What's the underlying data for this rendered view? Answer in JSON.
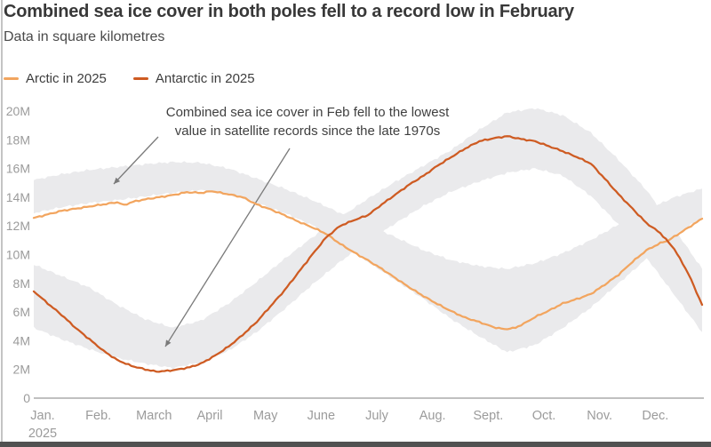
{
  "header": {
    "title": "Combined sea ice cover in both poles fell to a record low in February",
    "subtitle": "Data in square kilometres"
  },
  "legend": [
    {
      "label": "Arctic in 2025",
      "color": "#F2A55F"
    },
    {
      "label": "Antarctic in 2025",
      "color": "#CE5B22"
    }
  ],
  "annotation": {
    "line1": "Combined sea ice cover in Feb fell to the lowest",
    "line2": "value in satellite records since the late 1970s"
  },
  "chart_data": {
    "type": "line",
    "title": "Combined sea ice cover in both poles fell to a record low in February",
    "subtitle": "Data in square kilometres",
    "x_axis": {
      "labels": [
        "Jan.",
        "Feb.",
        "March",
        "April",
        "May",
        "June",
        "July",
        "Aug.",
        "Sept.",
        "Oct.",
        "Nov.",
        "Dec."
      ],
      "year_label": "2025",
      "range_months": [
        0,
        12
      ]
    },
    "y_axis": {
      "tick_values": [
        0,
        2,
        4,
        6,
        8,
        10,
        12,
        14,
        16,
        18,
        20
      ],
      "tick_suffix": "M",
      "min": 0,
      "max": 20,
      "grid": false
    },
    "colors": {
      "arctic": "#F2A55F",
      "antarctic": "#CE5B22",
      "band": "#EAEAEC",
      "axis": "#ababab",
      "tick_text": "#9b9b9b",
      "arrow": "#7a7a7a"
    },
    "series": [
      {
        "name": "Arctic in 2025",
        "color": "#F2A55F",
        "unit": "million sq km",
        "points": [
          [
            0,
            12.55
          ],
          [
            0.25,
            12.8
          ],
          [
            0.5,
            13.05
          ],
          [
            0.75,
            13.2
          ],
          [
            1,
            13.35
          ],
          [
            1.25,
            13.5
          ],
          [
            1.5,
            13.65
          ],
          [
            1.62,
            13.45
          ],
          [
            1.78,
            13.68
          ],
          [
            2,
            13.85
          ],
          [
            2.25,
            14.0
          ],
          [
            2.5,
            14.15
          ],
          [
            2.75,
            14.35
          ],
          [
            3,
            14.3
          ],
          [
            3.2,
            14.42
          ],
          [
            3.5,
            14.2
          ],
          [
            3.75,
            14.0
          ],
          [
            4,
            13.5
          ],
          [
            4.25,
            13.15
          ],
          [
            4.5,
            12.75
          ],
          [
            4.75,
            12.3
          ],
          [
            5,
            11.9
          ],
          [
            5.25,
            11.45
          ],
          [
            5.5,
            10.75
          ],
          [
            5.75,
            10.15
          ],
          [
            6,
            9.6
          ],
          [
            6.25,
            9.0
          ],
          [
            6.5,
            8.35
          ],
          [
            6.75,
            7.7
          ],
          [
            7,
            7.1
          ],
          [
            7.25,
            6.55
          ],
          [
            7.5,
            6.05
          ],
          [
            7.75,
            5.6
          ],
          [
            8,
            5.3
          ],
          [
            8.25,
            4.95
          ],
          [
            8.45,
            4.8
          ],
          [
            8.65,
            4.9
          ],
          [
            8.85,
            5.3
          ],
          [
            9,
            5.65
          ],
          [
            9.25,
            6.1
          ],
          [
            9.5,
            6.6
          ],
          [
            9.75,
            6.9
          ],
          [
            10,
            7.25
          ],
          [
            10.25,
            7.9
          ],
          [
            10.5,
            8.6
          ],
          [
            10.75,
            9.5
          ],
          [
            11,
            10.3
          ],
          [
            11.25,
            10.8
          ],
          [
            11.4,
            11.0
          ],
          [
            11.6,
            11.5
          ],
          [
            11.8,
            12.0
          ],
          [
            12,
            12.5
          ]
        ]
      },
      {
        "name": "Antarctic in 2025",
        "color": "#CE5B22",
        "unit": "million sq km",
        "points": [
          [
            0,
            7.45
          ],
          [
            0.25,
            6.6
          ],
          [
            0.5,
            5.8
          ],
          [
            0.75,
            4.9
          ],
          [
            1,
            4.1
          ],
          [
            1.25,
            3.3
          ],
          [
            1.5,
            2.65
          ],
          [
            1.75,
            2.25
          ],
          [
            2,
            2.0
          ],
          [
            2.2,
            1.85
          ],
          [
            2.4,
            1.9
          ],
          [
            2.6,
            2.0
          ],
          [
            2.8,
            2.15
          ],
          [
            3,
            2.4
          ],
          [
            3.25,
            2.95
          ],
          [
            3.5,
            3.6
          ],
          [
            3.75,
            4.4
          ],
          [
            4,
            5.3
          ],
          [
            4.25,
            6.4
          ],
          [
            4.5,
            7.5
          ],
          [
            4.75,
            8.75
          ],
          [
            5,
            10.0
          ],
          [
            5.25,
            11.2
          ],
          [
            5.5,
            12.0
          ],
          [
            5.75,
            12.4
          ],
          [
            6,
            12.75
          ],
          [
            6.25,
            13.5
          ],
          [
            6.5,
            14.2
          ],
          [
            6.75,
            14.9
          ],
          [
            7,
            15.5
          ],
          [
            7.25,
            16.2
          ],
          [
            7.5,
            16.8
          ],
          [
            7.75,
            17.4
          ],
          [
            8,
            17.9
          ],
          [
            8.25,
            18.1
          ],
          [
            8.5,
            18.25
          ],
          [
            8.75,
            18.05
          ],
          [
            9,
            17.9
          ],
          [
            9.25,
            17.55
          ],
          [
            9.5,
            17.2
          ],
          [
            9.75,
            16.8
          ],
          [
            10,
            16.35
          ],
          [
            10.25,
            15.3
          ],
          [
            10.5,
            14.2
          ],
          [
            10.75,
            13.2
          ],
          [
            11,
            12.2
          ],
          [
            11.25,
            11.5
          ],
          [
            11.5,
            10.4
          ],
          [
            11.75,
            8.7
          ],
          [
            12,
            6.5
          ]
        ]
      }
    ],
    "bands": [
      {
        "name": "arctic-historical-range",
        "points": [
          [
            0,
            15.2,
            12.9
          ],
          [
            0.5,
            15.6,
            13.3
          ],
          [
            1,
            15.9,
            13.6
          ],
          [
            1.5,
            16.1,
            13.8
          ],
          [
            2,
            16.3,
            14.05
          ],
          [
            2.5,
            16.45,
            14.3
          ],
          [
            3,
            16.4,
            14.5
          ],
          [
            3.5,
            16.0,
            14.2
          ],
          [
            4,
            15.3,
            13.6
          ],
          [
            4.5,
            14.6,
            12.9
          ],
          [
            5,
            13.8,
            12.05
          ],
          [
            5.5,
            12.9,
            10.8
          ],
          [
            6,
            12.1,
            9.5
          ],
          [
            6.5,
            11.2,
            8.2
          ],
          [
            7,
            10.3,
            6.9
          ],
          [
            7.5,
            9.6,
            5.5
          ],
          [
            8,
            9.2,
            4.3
          ],
          [
            8.5,
            9.0,
            3.2
          ],
          [
            9,
            9.4,
            3.7
          ],
          [
            9.5,
            10.1,
            4.9
          ],
          [
            10,
            11.0,
            6.3
          ],
          [
            10.5,
            12.1,
            8.0
          ],
          [
            11,
            13.1,
            9.7
          ],
          [
            11.5,
            14.0,
            11.3
          ],
          [
            12,
            14.6,
            12.6
          ]
        ]
      },
      {
        "name": "antarctic-historical-range",
        "points": [
          [
            0,
            9.3,
            4.9
          ],
          [
            0.5,
            8.5,
            4.1
          ],
          [
            1,
            7.7,
            3.4
          ],
          [
            1.5,
            6.5,
            2.8
          ],
          [
            2,
            5.5,
            2.4
          ],
          [
            2.5,
            4.9,
            2.1
          ],
          [
            3,
            5.4,
            2.5
          ],
          [
            3.5,
            6.6,
            3.3
          ],
          [
            4,
            8.1,
            4.6
          ],
          [
            4.5,
            9.7,
            6.2
          ],
          [
            5,
            11.2,
            7.9
          ],
          [
            5.5,
            12.6,
            9.5
          ],
          [
            6,
            13.9,
            10.9
          ],
          [
            6.5,
            15.1,
            12.2
          ],
          [
            7,
            16.2,
            13.4
          ],
          [
            7.5,
            17.3,
            14.4
          ],
          [
            8,
            18.7,
            15.1
          ],
          [
            8.5,
            19.9,
            15.7
          ],
          [
            9,
            20.2,
            16.0
          ],
          [
            9.5,
            19.7,
            15.5
          ],
          [
            10,
            18.5,
            14.1
          ],
          [
            10.5,
            16.6,
            12.1
          ],
          [
            11,
            14.5,
            9.8
          ],
          [
            11.5,
            11.8,
            7.2
          ],
          [
            12,
            9.0,
            4.6
          ]
        ]
      }
    ]
  }
}
